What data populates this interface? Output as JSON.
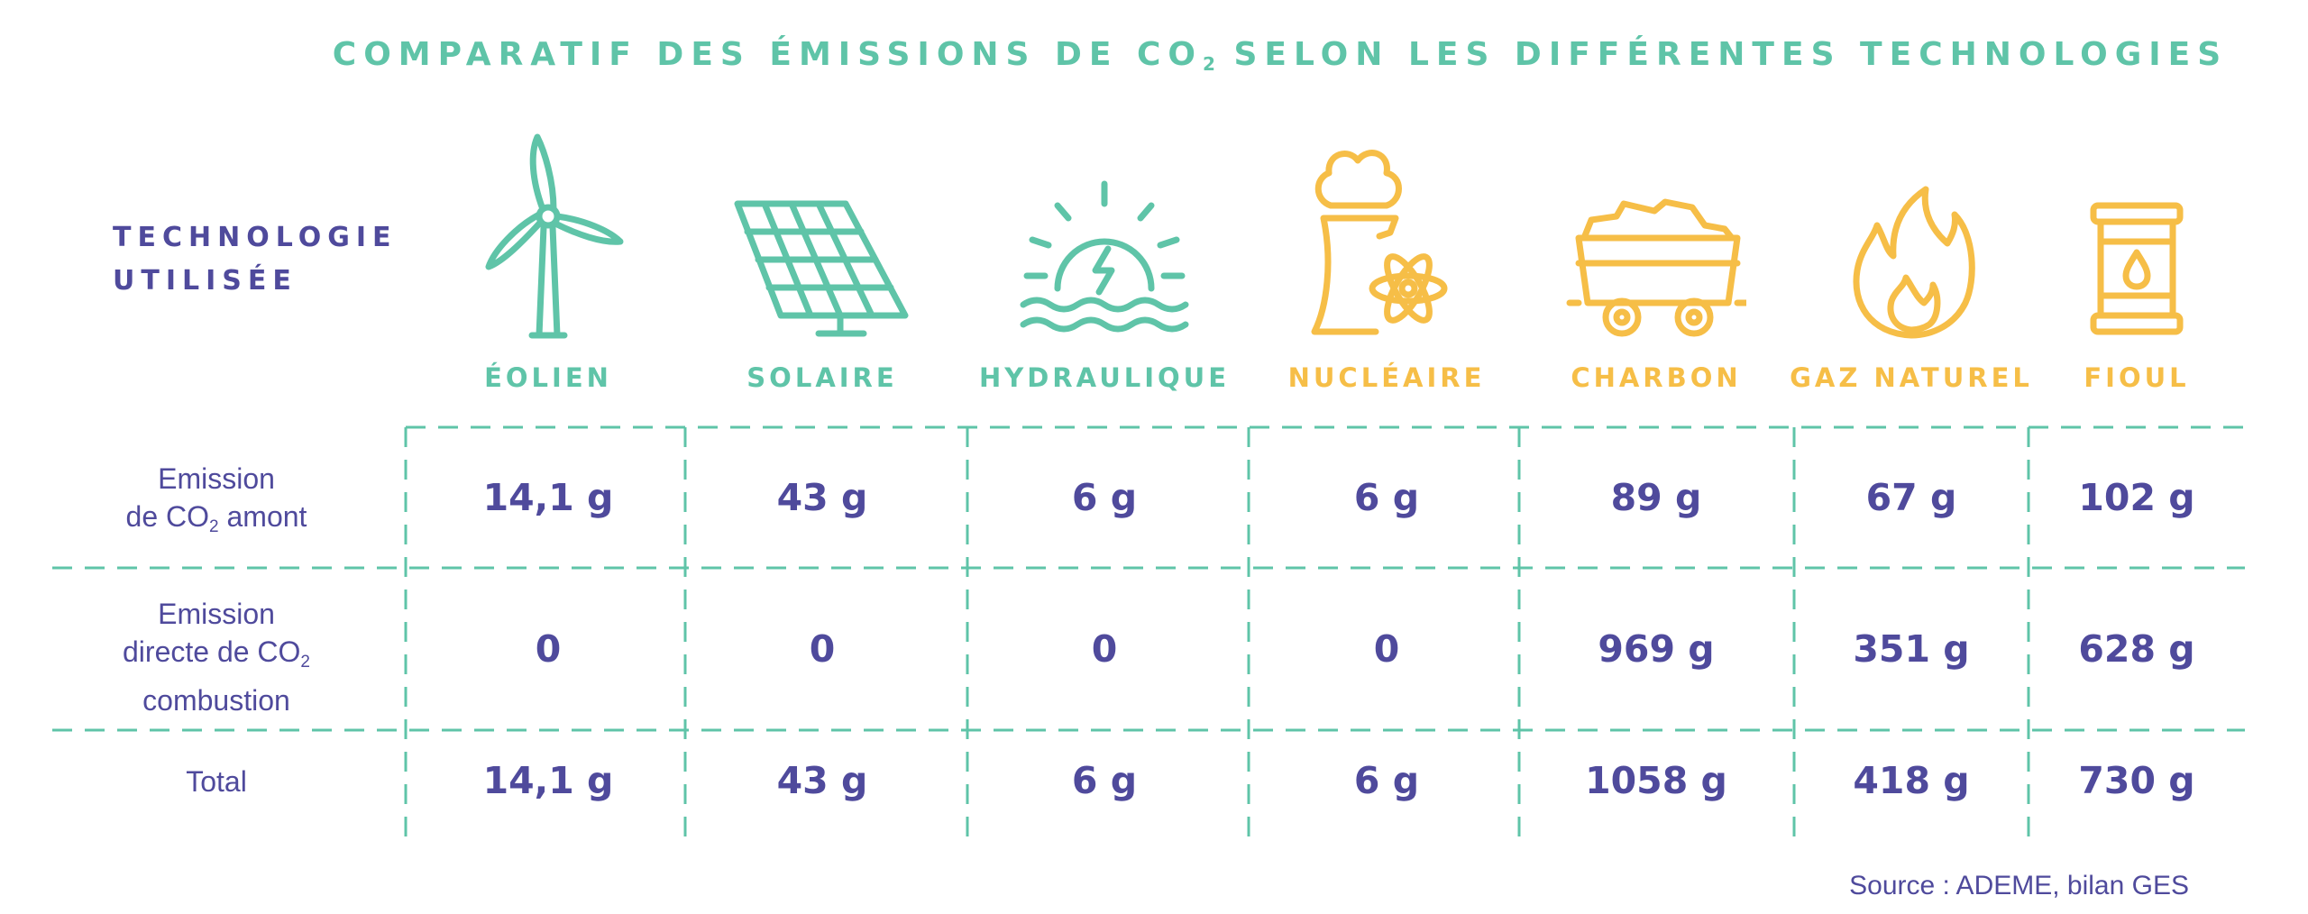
{
  "title": {
    "pre": "COMPARATIF DES ÉMISSIONS DE CO",
    "sub": "2",
    "post": " SELON LES DIFFÉRENTES TECHNOLOGIES"
  },
  "tech_label": {
    "line1": "TECHNOLOGIE",
    "line2": "UTILISÉE"
  },
  "technologies": [
    {
      "name": "ÉOLIEN",
      "icon": "wind-turbine-icon",
      "color": "#5fc4a8"
    },
    {
      "name": "SOLAIRE",
      "icon": "solar-panel-icon",
      "color": "#5fc4a8"
    },
    {
      "name": "HYDRAULIQUE",
      "icon": "hydro-icon",
      "color": "#5fc4a8"
    },
    {
      "name": "NUCLÉAIRE",
      "icon": "nuclear-plant-icon",
      "color": "#f6be47"
    },
    {
      "name": "CHARBON",
      "icon": "coal-cart-icon",
      "color": "#f6be47"
    },
    {
      "name": "GAZ NATUREL",
      "icon": "flame-icon",
      "color": "#f6be47"
    },
    {
      "name": "FIOUL",
      "icon": "oil-barrel-icon",
      "color": "#f6be47"
    }
  ],
  "rows": [
    {
      "label_lines": [
        {
          "text": "Emission"
        },
        {
          "pre": "de CO",
          "sub": "2",
          "post": " amont"
        }
      ],
      "values": [
        "14,1 g",
        "43 g",
        "6 g",
        "6 g",
        "89 g",
        "67 g",
        "102 g"
      ]
    },
    {
      "label_lines": [
        {
          "text": "Emission"
        },
        {
          "pre": "directe de CO",
          "sub": "2",
          "post": ""
        },
        {
          "text": "combustion"
        }
      ],
      "values": [
        "0",
        "0",
        "0",
        "0",
        "969 g",
        "351 g",
        "628 g"
      ]
    },
    {
      "label_lines": [
        {
          "text": "Total"
        }
      ],
      "values": [
        "14,1 g",
        "43 g",
        "6 g",
        "6 g",
        "1058 g",
        "418 g",
        "730 g"
      ]
    }
  ],
  "source": "Source : ADEME, bilan GES",
  "colors": {
    "accent_green": "#5fc4a8",
    "accent_yellow": "#f6be47",
    "text": "#4f4a9c"
  },
  "chart_data": {
    "type": "table",
    "title": "COMPARATIF DES ÉMISSIONS DE CO2 SELON LES DIFFÉRENTES TECHNOLOGIES",
    "columns": [
      "ÉOLIEN",
      "SOLAIRE",
      "HYDRAULIQUE",
      "NUCLÉAIRE",
      "CHARBON",
      "GAZ NATUREL",
      "FIOUL"
    ],
    "rows": [
      {
        "label": "Emission de CO2 amont",
        "values": [
          "14,1 g",
          "43 g",
          "6 g",
          "6 g",
          "89 g",
          "67 g",
          "102 g"
        ]
      },
      {
        "label": "Emission directe de CO2 combustion",
        "values": [
          "0",
          "0",
          "0",
          "0",
          "969 g",
          "351 g",
          "628 g"
        ]
      },
      {
        "label": "Total",
        "values": [
          "14,1 g",
          "43 g",
          "6 g",
          "6 g",
          "1058 g",
          "418 g",
          "730 g"
        ]
      }
    ]
  }
}
